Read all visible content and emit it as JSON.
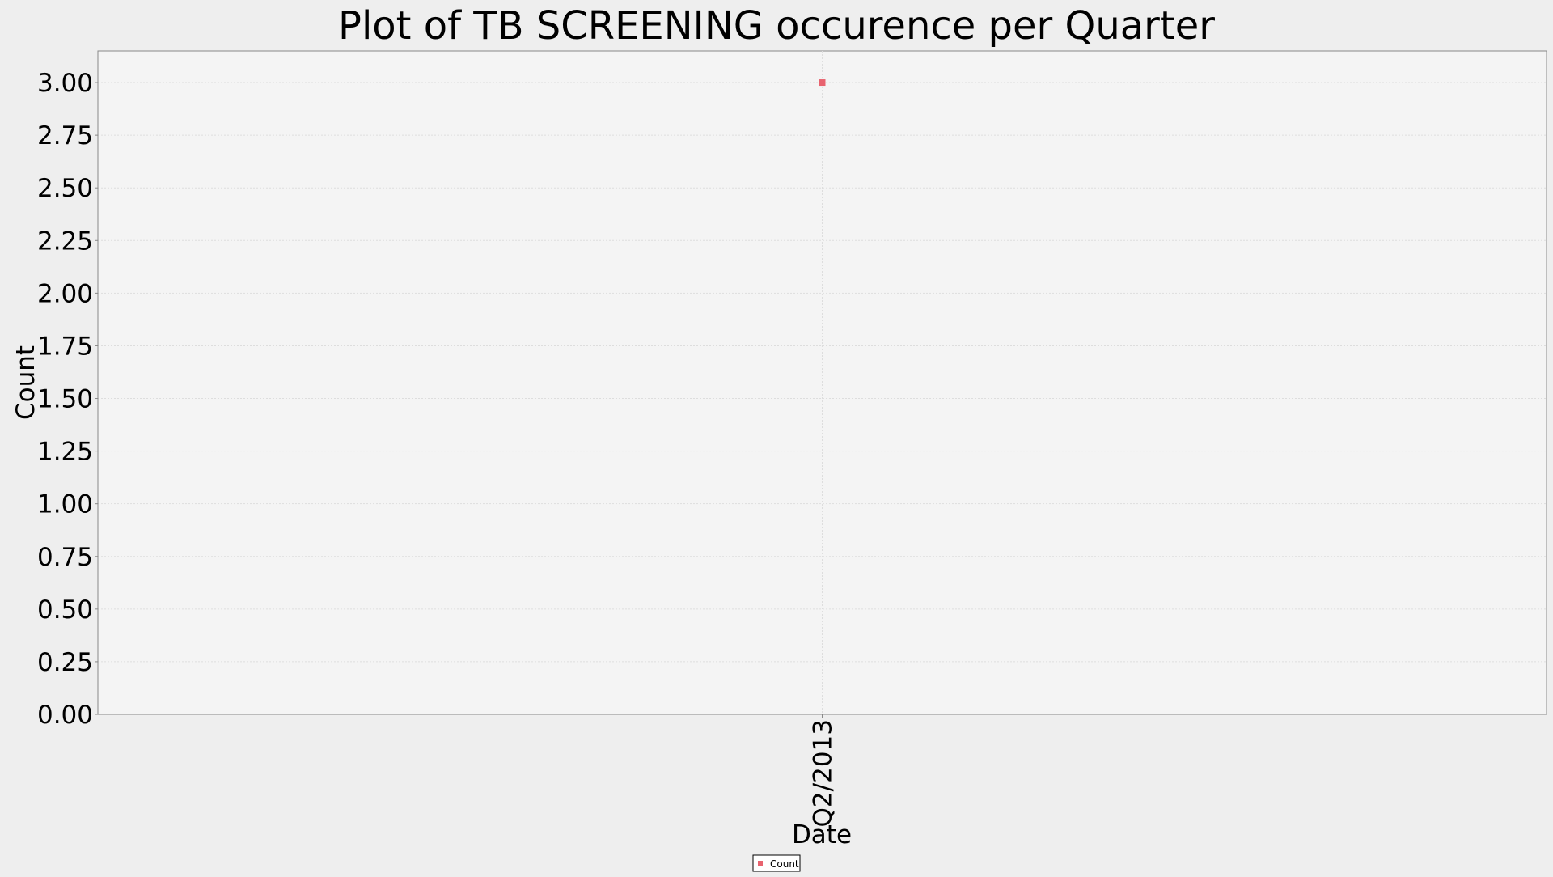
{
  "chart_data": {
    "type": "scatter",
    "title": "Plot of TB SCREENING occurence per Quarter",
    "xlabel": "Date",
    "ylabel": "Count",
    "categories": [
      "Q2/2013"
    ],
    "series": [
      {
        "name": "Count",
        "values": [
          3
        ]
      }
    ],
    "ylim": [
      0,
      3.15
    ],
    "yticks": [
      "0.00",
      "0.25",
      "0.50",
      "0.75",
      "1.00",
      "1.25",
      "1.50",
      "1.75",
      "2.00",
      "2.25",
      "2.50",
      "2.75",
      "3.00"
    ],
    "grid": true,
    "legend_position": "bottom-center",
    "colors": {
      "series": "#e8636f",
      "plot_background": "#f4f4f4",
      "page_background": "#eeeeee",
      "grid": "#dddddd",
      "axis": "#888888"
    }
  }
}
